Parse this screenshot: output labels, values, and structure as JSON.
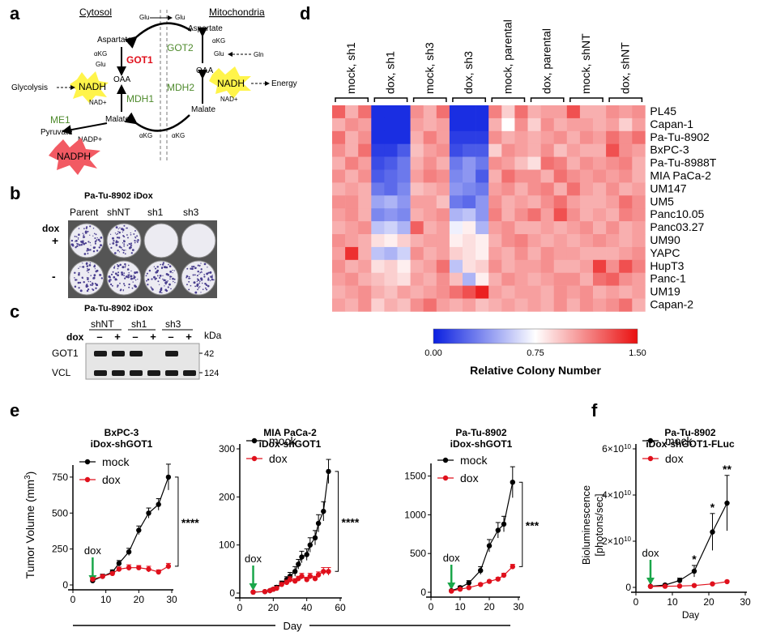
{
  "panels": {
    "a": {
      "letter": "a",
      "cytosol": "Cytosol",
      "mito": "Mitochondria",
      "glu_top_l": "Glu",
      "glu_top_r": "Glu",
      "aspartate_l": "Aspartate",
      "aspartate_r": "Aspartate",
      "got1": "GOT1",
      "got2": "GOT2",
      "akg1": "αKG",
      "glu1": "Glu",
      "akg2": "αKG",
      "glu2": "Glu",
      "gln": "Gln",
      "glycolysis": "Glycolysis",
      "nadh_l": "NADH",
      "nadh_r": "NADH",
      "energy": "Energy",
      "nadplus_l": "NAD+",
      "nadplus_r": "NAD+",
      "oaa_l": "OAA",
      "oaa_r": "OAA",
      "mdh1": "MDH1",
      "mdh2": "MDH2",
      "malate_l": "Malate",
      "malate_r": "Malate",
      "me1": "ME1",
      "pyruvate": "Pyruvate",
      "nadpplus": "NADP+",
      "akg3": "αKG",
      "akg4": "αKG",
      "nadph": "NADPH",
      "color_red": "#e0101c",
      "color_green": "#4e8a2c",
      "color_yellow_burst": "#fff44a",
      "color_pink_burst": "#f25a63"
    },
    "b": {
      "letter": "b",
      "title": "Pa-Tu-8902 iDox",
      "cols": [
        "Parent",
        "shNT",
        "sh1",
        "sh3"
      ],
      "dox": "dox",
      "plus": "+",
      "minus": "-",
      "plate_colony_pattern": [
        [
          1,
          1,
          0,
          0
        ],
        [
          1,
          1,
          1,
          1
        ]
      ]
    },
    "c": {
      "letter": "c",
      "title": "Pa-Tu-8902 iDox",
      "dox": "dox",
      "groups": [
        "shNT",
        "sh1",
        "sh3"
      ],
      "lane_signs": [
        "–",
        "+",
        "–",
        "+",
        "–",
        "+"
      ],
      "kda": "kDa",
      "rows": [
        {
          "label": "GOT1",
          "kda": "42",
          "bands": [
            1,
            1,
            1,
            0,
            1,
            0
          ]
        },
        {
          "label": "VCL",
          "kda": "124",
          "bands": [
            1,
            1,
            1,
            1,
            1,
            1
          ]
        }
      ]
    },
    "d": {
      "letter": "d",
      "col_groups": [
        "mock, sh1",
        "dox, sh1",
        "mock, sh3",
        "dox, sh3",
        "mock, parental",
        "dox, parental",
        "mock, shNT",
        "dox, shNT"
      ],
      "rows": [
        "PL45",
        "Capan-1",
        "Pa-Tu-8902",
        "BxPC-3",
        "Pa-Tu-8988T",
        "MIA PaCa-2",
        "UM147",
        "UM5",
        "Panc10.05",
        "Panc03.27",
        "UM90",
        "YAPC",
        "HupT3",
        "Panc-1",
        "UM19",
        "Capan-2"
      ],
      "colorbar": {
        "min": "0.00",
        "mid": "0.75",
        "max": "1.50",
        "label": "Relative Colony Number"
      },
      "colors": {
        "low": "#0a1fe0",
        "mid": "#ffffff",
        "high": "#ea1010"
      }
    },
    "e": {
      "letter": "e",
      "x_label": "Day",
      "y_label_main": "Tumor Volume (mm",
      "y_label_sup": "3",
      "y_label_end": ")",
      "dox_arrow": "dox",
      "arrow_color": "#1aa64a"
    },
    "f": {
      "letter": "f",
      "y_label_1": "Bioluminescence",
      "y_label_2": "[photons/sec]",
      "x_label": "Day",
      "dox_arrow": "dox"
    }
  },
  "chart_data": [
    {
      "type": "heatmap",
      "title": "",
      "rows": [
        "PL45",
        "Capan-1",
        "Pa-Tu-8902",
        "BxPC-3",
        "Pa-Tu-8988T",
        "MIA PaCa-2",
        "UM147",
        "UM5",
        "Panc10.05",
        "Panc03.27",
        "UM90",
        "YAPC",
        "HupT3",
        "Panc-1",
        "UM19",
        "Capan-2"
      ],
      "column_groups": [
        "mock, sh1",
        "dox, sh1",
        "mock, sh3",
        "dox, sh3",
        "mock, parental",
        "dox, parental",
        "mock, shNT",
        "dox, shNT"
      ],
      "replicates_per_group": 3,
      "color_scale": {
        "min": 0.0,
        "mid": 0.75,
        "max": 1.5,
        "label": "Relative Colony Number"
      },
      "values": [
        [
          1.25,
          1.0,
          1.2,
          0.05,
          0.05,
          0.05,
          1.1,
          1.0,
          1.2,
          0.05,
          0.05,
          0.05,
          1.15,
          0.9,
          1.2,
          1.0,
          1.05,
          1.05,
          1.3,
          1.0,
          1.0,
          1.1,
          1.05,
          1.1
        ],
        [
          1.0,
          1.1,
          1.05,
          0.05,
          0.05,
          0.05,
          1.05,
          1.0,
          1.05,
          0.05,
          0.05,
          0.05,
          1.0,
          0.75,
          1.1,
          0.9,
          1.1,
          1.0,
          1.05,
          1.05,
          1.0,
          1.05,
          0.9,
          1.05
        ],
        [
          1.2,
          1.0,
          1.1,
          0.05,
          0.05,
          0.05,
          1.0,
          1.15,
          1.05,
          0.1,
          0.1,
          0.1,
          1.1,
          1.0,
          1.05,
          1.0,
          1.05,
          1.1,
          1.0,
          1.1,
          1.05,
          1.2,
          1.1,
          1.2
        ],
        [
          1.1,
          1.0,
          1.2,
          0.1,
          0.1,
          0.2,
          0.95,
          1.05,
          1.1,
          0.15,
          0.2,
          0.2,
          0.9,
          1.1,
          1.05,
          1.0,
          1.1,
          0.95,
          1.05,
          1.0,
          1.0,
          1.3,
          1.1,
          1.05
        ],
        [
          1.0,
          1.15,
          1.05,
          0.15,
          0.2,
          0.3,
          1.0,
          1.1,
          1.0,
          0.3,
          0.4,
          0.3,
          1.1,
          1.05,
          0.95,
          0.85,
          1.2,
          1.15,
          1.0,
          1.1,
          1.05,
          1.1,
          1.15,
          1.0
        ],
        [
          1.1,
          1.0,
          1.1,
          0.2,
          0.25,
          0.3,
          1.05,
          1.15,
          1.1,
          0.35,
          0.4,
          0.2,
          1.0,
          1.2,
          1.1,
          1.1,
          1.0,
          1.2,
          1.1,
          1.05,
          1.1,
          1.05,
          1.1,
          1.0
        ],
        [
          1.0,
          1.05,
          1.0,
          0.3,
          0.25,
          0.35,
          0.95,
          1.0,
          1.05,
          0.4,
          0.35,
          0.3,
          1.05,
          1.1,
          1.0,
          1.1,
          1.15,
          1.0,
          1.2,
          1.05,
          1.0,
          1.1,
          1.0,
          1.05
        ],
        [
          1.1,
          1.1,
          1.0,
          0.45,
          0.5,
          0.4,
          1.05,
          1.05,
          0.95,
          0.3,
          0.25,
          0.4,
          1.1,
          1.0,
          1.05,
          1.0,
          1.1,
          1.2,
          1.05,
          1.0,
          1.0,
          1.05,
          1.2,
          1.1
        ],
        [
          1.05,
          1.1,
          1.0,
          0.35,
          0.4,
          0.35,
          1.0,
          1.05,
          1.1,
          0.5,
          0.55,
          0.4,
          1.15,
          1.0,
          1.1,
          1.2,
          1.05,
          1.3,
          1.1,
          1.0,
          1.05,
          1.0,
          1.15,
          1.1
        ],
        [
          1.0,
          1.05,
          1.1,
          0.55,
          0.6,
          0.5,
          1.25,
          1.0,
          1.05,
          0.7,
          0.8,
          0.5,
          1.05,
          1.1,
          1.0,
          1.0,
          1.05,
          1.0,
          1.05,
          1.1,
          1.0,
          1.1,
          1.0,
          1.05
        ],
        [
          1.1,
          1.05,
          1.0,
          0.85,
          0.8,
          0.9,
          1.0,
          1.05,
          1.05,
          0.8,
          0.85,
          0.8,
          1.0,
          1.1,
          1.15,
          1.05,
          1.0,
          1.05,
          1.0,
          1.05,
          1.1,
          1.05,
          1.0,
          1.05
        ],
        [
          1.05,
          1.4,
          1.0,
          0.55,
          0.5,
          0.6,
          1.1,
          1.0,
          1.05,
          0.9,
          0.85,
          0.8,
          1.05,
          1.0,
          1.1,
          1.0,
          1.1,
          1.05,
          1.05,
          1.0,
          1.0,
          1.0,
          1.05,
          1.1
        ],
        [
          1.1,
          1.0,
          1.05,
          0.85,
          0.9,
          0.8,
          1.0,
          1.05,
          1.2,
          0.55,
          0.85,
          0.9,
          1.1,
          1.0,
          1.05,
          1.05,
          1.1,
          1.0,
          1.0,
          1.05,
          1.35,
          1.1,
          1.3,
          1.15
        ],
        [
          1.05,
          1.1,
          1.0,
          0.95,
          0.9,
          0.85,
          1.05,
          1.0,
          1.1,
          0.95,
          0.5,
          0.8,
          1.0,
          1.1,
          1.05,
          1.0,
          1.05,
          1.1,
          1.1,
          1.0,
          1.2,
          1.25,
          1.1,
          1.05
        ],
        [
          1.0,
          1.05,
          1.1,
          1.0,
          0.95,
          1.05,
          1.0,
          1.05,
          1.1,
          1.2,
          1.3,
          1.45,
          1.05,
          1.0,
          1.05,
          1.05,
          1.0,
          1.1,
          1.05,
          1.1,
          1.0,
          1.05,
          1.0,
          1.05
        ],
        [
          1.05,
          1.0,
          1.1,
          0.9,
          1.0,
          0.95,
          1.1,
          1.2,
          1.05,
          1.0,
          1.05,
          0.95,
          1.0,
          1.05,
          1.0,
          1.05,
          1.0,
          1.1,
          1.0,
          1.1,
          1.05,
          1.1,
          1.2,
          1.0
        ]
      ]
    },
    {
      "type": "line",
      "title": "BxPC-3\niDox-shGOT1",
      "xlabel": "",
      "ylabel": "Tumor Volume (mm3)",
      "xlim": [
        0,
        30
      ],
      "ylim": [
        0,
        800
      ],
      "xticks": [
        0,
        10,
        20,
        30
      ],
      "yticks": [
        0,
        250,
        500,
        750
      ],
      "legend": "top-left",
      "dox_day": 6,
      "significance": "****",
      "series": [
        {
          "name": "mock",
          "color": "#000000",
          "x": [
            6,
            9,
            12,
            14,
            17,
            20,
            23,
            26,
            29
          ],
          "y": [
            30,
            60,
            90,
            150,
            230,
            380,
            500,
            560,
            750
          ],
          "err": [
            10,
            15,
            15,
            20,
            25,
            30,
            35,
            40,
            90
          ]
        },
        {
          "name": "dox",
          "color": "#e0101c",
          "x": [
            6,
            9,
            12,
            14,
            17,
            20,
            23,
            26,
            29
          ],
          "y": [
            40,
            60,
            80,
            110,
            120,
            120,
            110,
            90,
            130
          ],
          "err": [
            10,
            10,
            10,
            15,
            20,
            15,
            20,
            15,
            20
          ]
        }
      ]
    },
    {
      "type": "line",
      "title": "MIA PaCa-2\niDox-shGOT1",
      "xlabel": "",
      "ylabel": "",
      "xlim": [
        0,
        60
      ],
      "ylim": [
        0,
        300
      ],
      "xticks": [
        0,
        20,
        40,
        60
      ],
      "yticks": [
        0,
        100,
        200,
        300
      ],
      "legend": "top-left",
      "dox_day": 8,
      "significance": "****",
      "series": [
        {
          "name": "mock",
          "color": "#000000",
          "x": [
            8,
            15,
            18,
            20,
            22,
            25,
            28,
            30,
            33,
            35,
            37,
            40,
            42,
            45,
            47,
            50,
            53
          ],
          "y": [
            2,
            3,
            5,
            8,
            12,
            20,
            28,
            35,
            45,
            60,
            75,
            80,
            100,
            115,
            145,
            170,
            253
          ],
          "err": [
            1,
            2,
            2,
            3,
            4,
            5,
            6,
            8,
            10,
            10,
            12,
            12,
            15,
            15,
            18,
            20,
            25
          ]
        },
        {
          "name": "dox",
          "color": "#e0101c",
          "x": [
            8,
            15,
            18,
            20,
            22,
            25,
            28,
            30,
            33,
            35,
            37,
            40,
            42,
            45,
            47,
            50,
            53
          ],
          "y": [
            2,
            3,
            5,
            8,
            10,
            18,
            22,
            28,
            25,
            30,
            35,
            28,
            35,
            30,
            38,
            45,
            45
          ],
          "err": [
            1,
            2,
            2,
            3,
            3,
            4,
            5,
            6,
            5,
            5,
            6,
            5,
            6,
            5,
            6,
            8,
            8
          ]
        }
      ]
    },
    {
      "type": "line",
      "title": "Pa-Tu-8902\niDox-shGOT1",
      "xlabel": "",
      "ylabel": "",
      "xlim": [
        0,
        30
      ],
      "ylim": [
        0,
        1600
      ],
      "xticks": [
        0,
        10,
        20,
        30
      ],
      "yticks": [
        0,
        500,
        1000,
        1500
      ],
      "legend": "top-left",
      "dox_day": 7,
      "significance": "***",
      "series": [
        {
          "name": "mock",
          "color": "#000000",
          "x": [
            7,
            10,
            13,
            17,
            20,
            23,
            25,
            28
          ],
          "y": [
            20,
            60,
            120,
            280,
            600,
            800,
            880,
            1420
          ],
          "err": [
            10,
            20,
            30,
            50,
            80,
            100,
            100,
            200
          ]
        },
        {
          "name": "dox",
          "color": "#e0101c",
          "x": [
            7,
            10,
            13,
            17,
            20,
            23,
            25,
            28
          ],
          "y": [
            15,
            40,
            60,
            100,
            140,
            170,
            220,
            330
          ],
          "err": [
            5,
            10,
            10,
            15,
            15,
            20,
            25,
            30
          ]
        }
      ]
    },
    {
      "type": "line",
      "title": "Pa-Tu-8902\niDox-shGOT1-FLuc",
      "xlabel": "Day",
      "ylabel": "Bioluminescence [photons/sec]",
      "xlim": [
        0,
        30
      ],
      "ylim": [
        0,
        60000000000.0
      ],
      "xticks": [
        0,
        10,
        20,
        30
      ],
      "yticks": [
        0,
        20000000000.0,
        40000000000.0,
        60000000000.0
      ],
      "ytick_labels": [
        [
          "0",
          ""
        ],
        [
          "2×10",
          "10"
        ],
        [
          "4×10",
          "10"
        ],
        [
          "6×10",
          "10"
        ]
      ],
      "legend": "top-left",
      "dox_day": 4,
      "series": [
        {
          "name": "mock",
          "color": "#000000",
          "x": [
            4,
            8,
            12,
            16,
            21,
            25
          ],
          "y": [
            500000000.0,
            1000000000.0,
            3000000000.0,
            7000000000.0,
            24000000000.0,
            36500000000.0
          ],
          "err": [
            200000000.0,
            500000000.0,
            1000000000.0,
            2500000000.0,
            8000000000.0,
            12000000000.0
          ],
          "stars": [
            "",
            "",
            "",
            "*",
            "*",
            "**"
          ]
        },
        {
          "name": "dox",
          "color": "#e0101c",
          "x": [
            4,
            8,
            12,
            16,
            21,
            25
          ],
          "y": [
            400000000.0,
            500000000.0,
            600000000.0,
            800000000.0,
            1500000000.0,
            2500000000.0
          ],
          "err": [
            100000000.0,
            100000000.0,
            200000000.0,
            200000000.0,
            300000000.0,
            400000000.0
          ],
          "stars": [
            "",
            "",
            "",
            "",
            "",
            ""
          ]
        }
      ]
    }
  ]
}
